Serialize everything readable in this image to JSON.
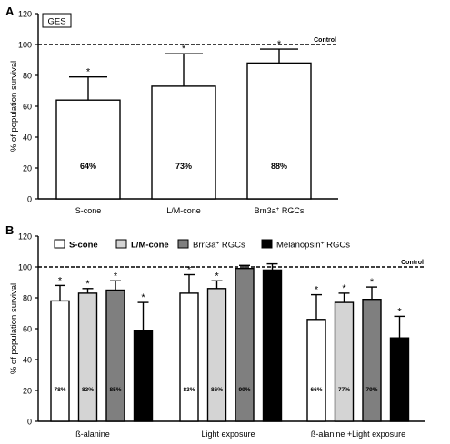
{
  "chart_data": [
    {
      "panel_label": "A",
      "type": "bar",
      "box_label": "GES",
      "ylabel": "% of population survival",
      "ylim": [
        0,
        120
      ],
      "yticks": [
        0,
        20,
        40,
        60,
        80,
        100,
        120
      ],
      "categories": [
        "S-cone",
        "L/M-cone",
        "Brn3a⁺ RGCs"
      ],
      "values": [
        64,
        73,
        88
      ],
      "errors": [
        15,
        21,
        9
      ],
      "bar_labels": [
        "64%",
        "73%",
        "88%"
      ],
      "significance": [
        "*",
        "*",
        "*"
      ],
      "reference_line": {
        "value": 100,
        "label": "Control"
      }
    },
    {
      "panel_label": "B",
      "type": "bar",
      "ylabel": "% of population survival",
      "ylim": [
        0,
        120
      ],
      "yticks": [
        0,
        20,
        40,
        60,
        80,
        100,
        120
      ],
      "groups": [
        "ß-alanine",
        "Light exposure",
        "ß-alanine +Light exposure"
      ],
      "series": [
        {
          "name": "S-cone",
          "color": "#ffffff",
          "values": [
            78,
            83,
            66
          ],
          "errors": [
            10,
            12,
            16
          ],
          "labels": [
            "78%",
            "83%",
            "66%"
          ],
          "significance": [
            "*",
            "*",
            "*"
          ]
        },
        {
          "name": "L/M-cone",
          "color": "#d4d4d4",
          "values": [
            83,
            86,
            77
          ],
          "errors": [
            3,
            5,
            6
          ],
          "labels": [
            "83%",
            "86%",
            "77%"
          ],
          "significance": [
            "*",
            "*",
            "*"
          ]
        },
        {
          "name": "Brn3a⁺ RGCs",
          "color": "#7f7f7f",
          "values": [
            85,
            99,
            79
          ],
          "errors": [
            6,
            2,
            8
          ],
          "labels": [
            "85%",
            "99%",
            "79%"
          ],
          "significance": [
            "*",
            "",
            "*"
          ]
        },
        {
          "name": "Melanopsin⁺ RGCs",
          "color": "#000000",
          "values": [
            59,
            98,
            54
          ],
          "errors": [
            18,
            4,
            14
          ],
          "labels": [
            "59%",
            "98%",
            "54%"
          ],
          "significance": [
            "*",
            "",
            "*"
          ]
        }
      ],
      "reference_line": {
        "value": 100,
        "label": "Control"
      },
      "legend_position": "top"
    }
  ]
}
